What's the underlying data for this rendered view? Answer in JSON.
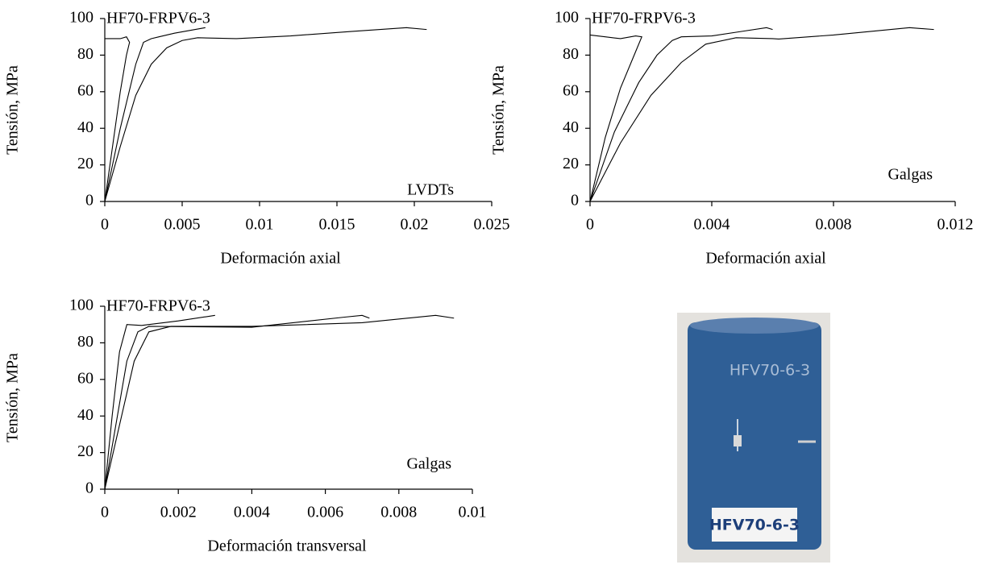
{
  "chart_data": [
    {
      "type": "line",
      "xlabel": "Deformación axial",
      "ylabel": "Tensión, MPa",
      "label": "HF70-FRPV6-3",
      "annotation": "LVDTs",
      "xlim": [
        0,
        0.025
      ],
      "xticks": [
        0,
        0.005,
        0.01,
        0.015,
        0.02,
        0.025
      ],
      "ylim": [
        0,
        100
      ],
      "yticks": [
        0,
        20,
        40,
        60,
        80,
        100
      ],
      "series": [
        {
          "color": "#000000",
          "x": [
            0,
            0.0005,
            0.001,
            0.0014,
            0.0016,
            0.0014,
            0.001,
            0
          ],
          "values": [
            0,
            30,
            60,
            80,
            87,
            90,
            89,
            89
          ]
        },
        {
          "color": "#000000",
          "x": [
            0,
            0.001,
            0.002,
            0.0025,
            0.003,
            0.0035,
            0.0045,
            0.0065
          ],
          "values": [
            0,
            40,
            75,
            87,
            89,
            90,
            92,
            95
          ]
        },
        {
          "color": "#000000",
          "x": [
            0,
            0.001,
            0.002,
            0.003,
            0.004,
            0.005,
            0.006,
            0.0085,
            0.012,
            0.016,
            0.0195,
            0.0208
          ],
          "values": [
            0,
            30,
            58,
            75,
            84,
            88,
            89.5,
            89,
            90.5,
            93,
            95,
            94
          ]
        }
      ]
    },
    {
      "type": "line",
      "xlabel": "Deformación axial",
      "ylabel": "Tensión, MPa",
      "label": "HF70-FRPV6-3",
      "annotation": "Galgas",
      "xlim": [
        0,
        0.012
      ],
      "xticks": [
        0,
        0.004,
        0.008,
        0.012
      ],
      "ylim": [
        0,
        100
      ],
      "yticks": [
        0,
        20,
        40,
        60,
        80,
        100
      ],
      "series": [
        {
          "color": "#000000",
          "x": [
            0,
            0.0005,
            0.001,
            0.0015,
            0.0017,
            0.0015,
            0.001,
            0.0005,
            0
          ],
          "values": [
            0,
            35,
            62,
            82,
            90,
            90.5,
            89,
            90,
            91
          ]
        },
        {
          "color": "#000000",
          "x": [
            0,
            0.0008,
            0.0016,
            0.0022,
            0.0027,
            0.003,
            0.004,
            0.005,
            0.0058,
            0.006
          ],
          "values": [
            0,
            38,
            65,
            80,
            88,
            90,
            90.5,
            93,
            95,
            94
          ]
        },
        {
          "color": "#000000",
          "x": [
            0,
            0.001,
            0.002,
            0.003,
            0.0038,
            0.0048,
            0.006,
            0.0062,
            0.008,
            0.0105,
            0.0113
          ],
          "values": [
            0,
            32,
            58,
            76,
            86,
            89.5,
            89,
            88.8,
            91,
            95,
            94
          ]
        }
      ]
    },
    {
      "type": "line",
      "xlabel": "Deformación transversal",
      "ylabel": "Tensión, MPa",
      "label": "HF70-FRPV6-3",
      "annotation": "Galgas",
      "xlim": [
        0,
        0.01
      ],
      "xticks": [
        0,
        0.002,
        0.004,
        0.006,
        0.008,
        0.01
      ],
      "ylim": [
        0,
        100
      ],
      "yticks": [
        0,
        20,
        40,
        60,
        80,
        100
      ],
      "series": [
        {
          "color": "#000000",
          "x": [
            0,
            0.0002,
            0.0004,
            0.0006,
            0.001,
            0.002,
            0.003
          ],
          "values": [
            0,
            40,
            75,
            90,
            89.5,
            92,
            95
          ]
        },
        {
          "color": "#000000",
          "x": [
            0,
            0.0003,
            0.0006,
            0.0009,
            0.0012,
            0.004,
            0.0065,
            0.007,
            0.0072
          ],
          "values": [
            0,
            35,
            70,
            86,
            89,
            88.5,
            94,
            95,
            93.5
          ]
        },
        {
          "color": "#000000",
          "x": [
            0,
            0.0004,
            0.0008,
            0.0012,
            0.0018,
            0.004,
            0.007,
            0.009,
            0.0095
          ],
          "values": [
            0,
            35,
            70,
            86,
            89,
            89,
            91,
            95,
            93.5
          ]
        }
      ]
    }
  ],
  "photo": {
    "top_text": "HFV70-6-3",
    "label_text": "HFV70-6-3"
  }
}
